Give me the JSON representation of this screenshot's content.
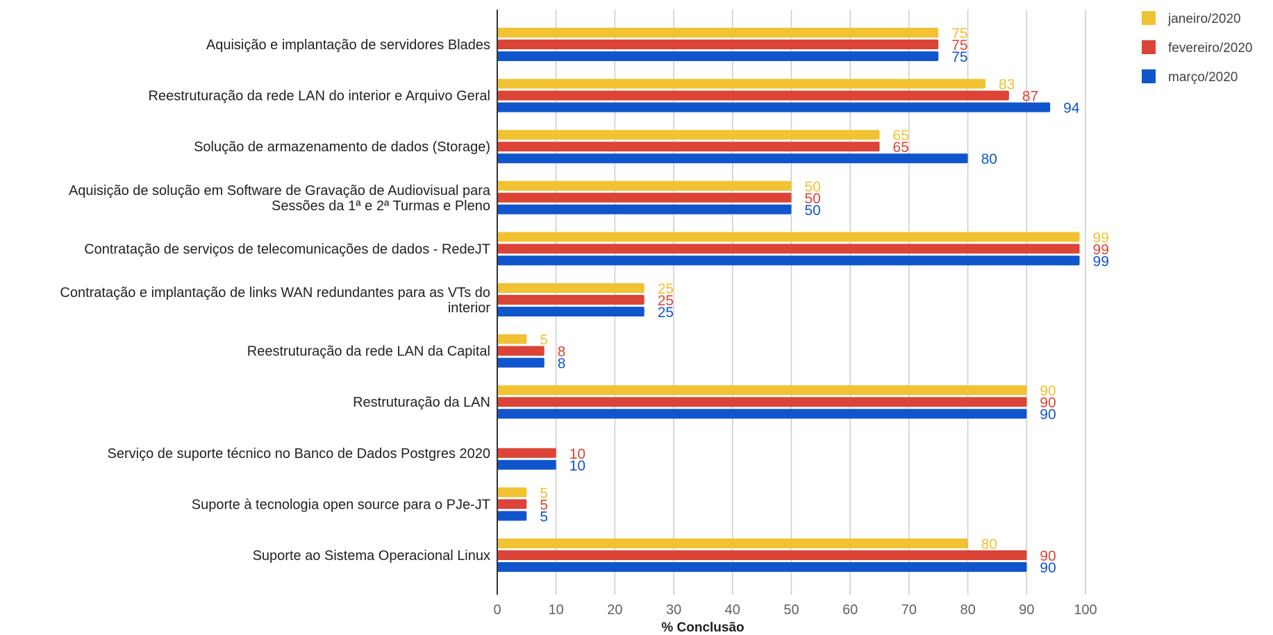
{
  "chart_data": {
    "type": "bar",
    "orientation": "horizontal",
    "categories": [
      [
        "Aquisição e implantação de servidores Blades"
      ],
      [
        "Reestruturação da rede LAN do interior e Arquivo Geral"
      ],
      [
        "Solução de armazenamento de dados (Storage)"
      ],
      [
        "Aquisição de solução em Software de Gravação de Audiovisual para",
        "Sessões da 1ª e 2ª Turmas e Pleno"
      ],
      [
        "Contratação de serviços de telecomunicações de dados - RedeJT"
      ],
      [
        "Contratação e implantação de links WAN redundantes para as VTs do",
        "interior"
      ],
      [
        "Reestruturação da rede LAN da Capital"
      ],
      [
        "Restruturação da LAN"
      ],
      [
        "Serviço de suporte técnico no Banco de Dados Postgres 2020"
      ],
      [
        "Suporte à tecnologia open source para o PJe-JT"
      ],
      [
        "Suporte ao Sistema Operacional Linux"
      ]
    ],
    "series": [
      {
        "name": "janeiro/2020",
        "color": "#f1c232",
        "label_color": "#f1c232",
        "values": [
          75,
          83,
          65,
          50,
          99,
          25,
          5,
          90,
          null,
          5,
          80
        ]
      },
      {
        "name": "fevereiro/2020",
        "color": "#db4437",
        "label_color": "#db4437",
        "values": [
          75,
          87,
          65,
          50,
          99,
          25,
          8,
          90,
          10,
          5,
          90
        ]
      },
      {
        "name": "março/2020",
        "color": "#1155cc",
        "label_color": "#1155cc",
        "values": [
          75,
          94,
          80,
          50,
          99,
          25,
          8,
          90,
          10,
          5,
          90
        ]
      }
    ],
    "xlabel": "% Conclusão",
    "ylabel": "",
    "xlim": [
      0,
      100
    ],
    "xticks": [
      0,
      10,
      20,
      30,
      40,
      50,
      60,
      70,
      80,
      90,
      100
    ],
    "grid": "vertical",
    "legend_position": "top-right",
    "data_labels": true
  }
}
